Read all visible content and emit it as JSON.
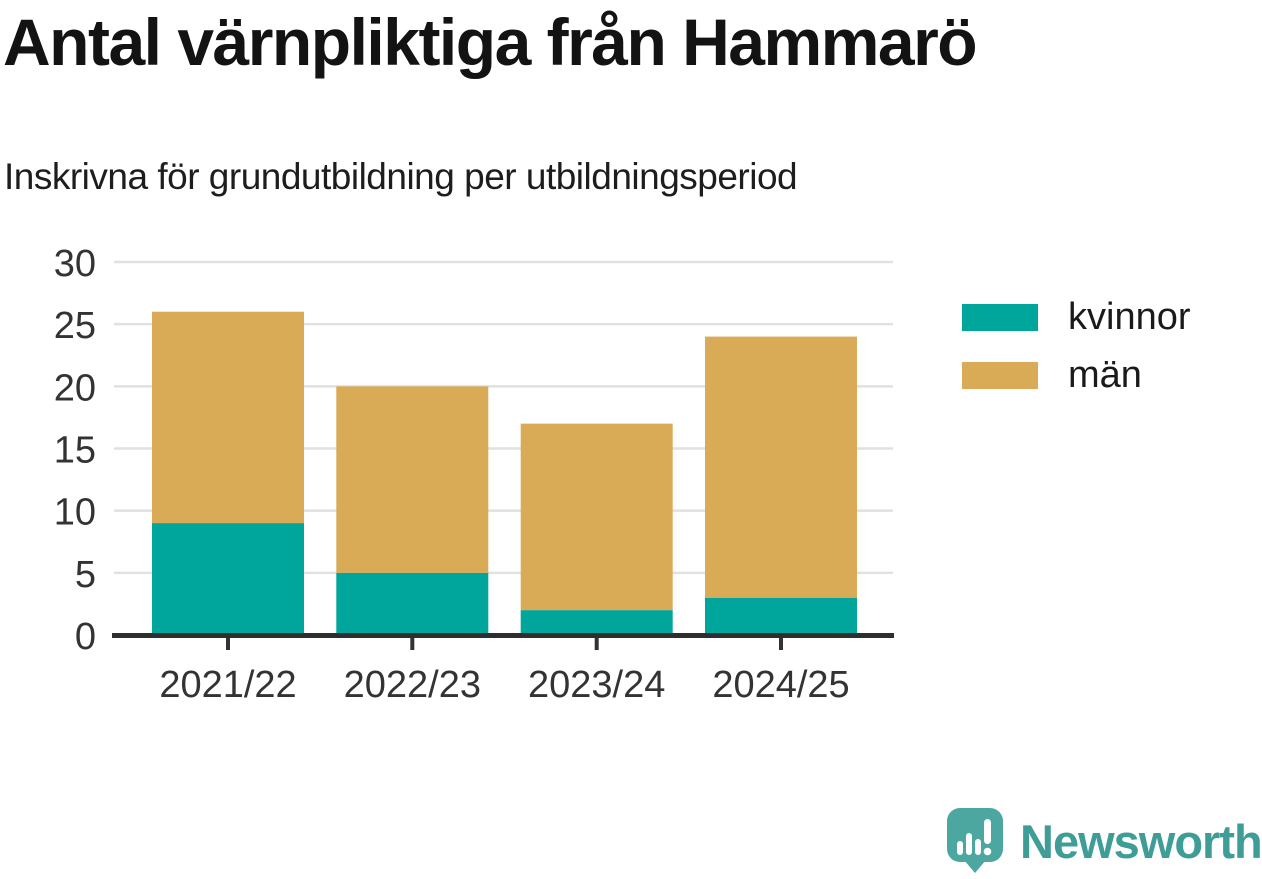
{
  "header": {
    "title": "Antal värnpliktiga från Hammarö",
    "subtitle": "Inskrivna för grundutbildning per utbildningsperiod"
  },
  "chart_data": {
    "type": "bar",
    "stacked": true,
    "title": "Antal värnpliktiga från Hammarö",
    "subtitle": "Inskrivna för grundutbildning per utbildningsperiod",
    "categories": [
      "2021/22",
      "2022/23",
      "2023/24",
      "2024/25"
    ],
    "series": [
      {
        "name": "kvinnor",
        "color": "#00a59b",
        "values": [
          9,
          5,
          2,
          3
        ]
      },
      {
        "name": "män",
        "color": "#d9ab57",
        "values": [
          17,
          15,
          15,
          21
        ]
      }
    ],
    "totals": [
      26,
      20,
      17,
      24
    ],
    "xlabel": "",
    "ylabel": "",
    "ylim": [
      0,
      30
    ],
    "ytick_step": 5,
    "yticks": [
      0,
      5,
      10,
      15,
      20,
      25,
      30
    ],
    "grid": "horizontal",
    "gridline_color": "#e1e1e1",
    "axis_color": "#2e2e2e",
    "tick_label_color": "#333333",
    "legend_position": "right"
  },
  "footer": {
    "brand_name": "Newsworthy",
    "brand_color": "#3f9d98",
    "brand_icon": "bar-chart-speech-bubble-icon",
    "brand_icon_color": "#4ba7a0"
  }
}
